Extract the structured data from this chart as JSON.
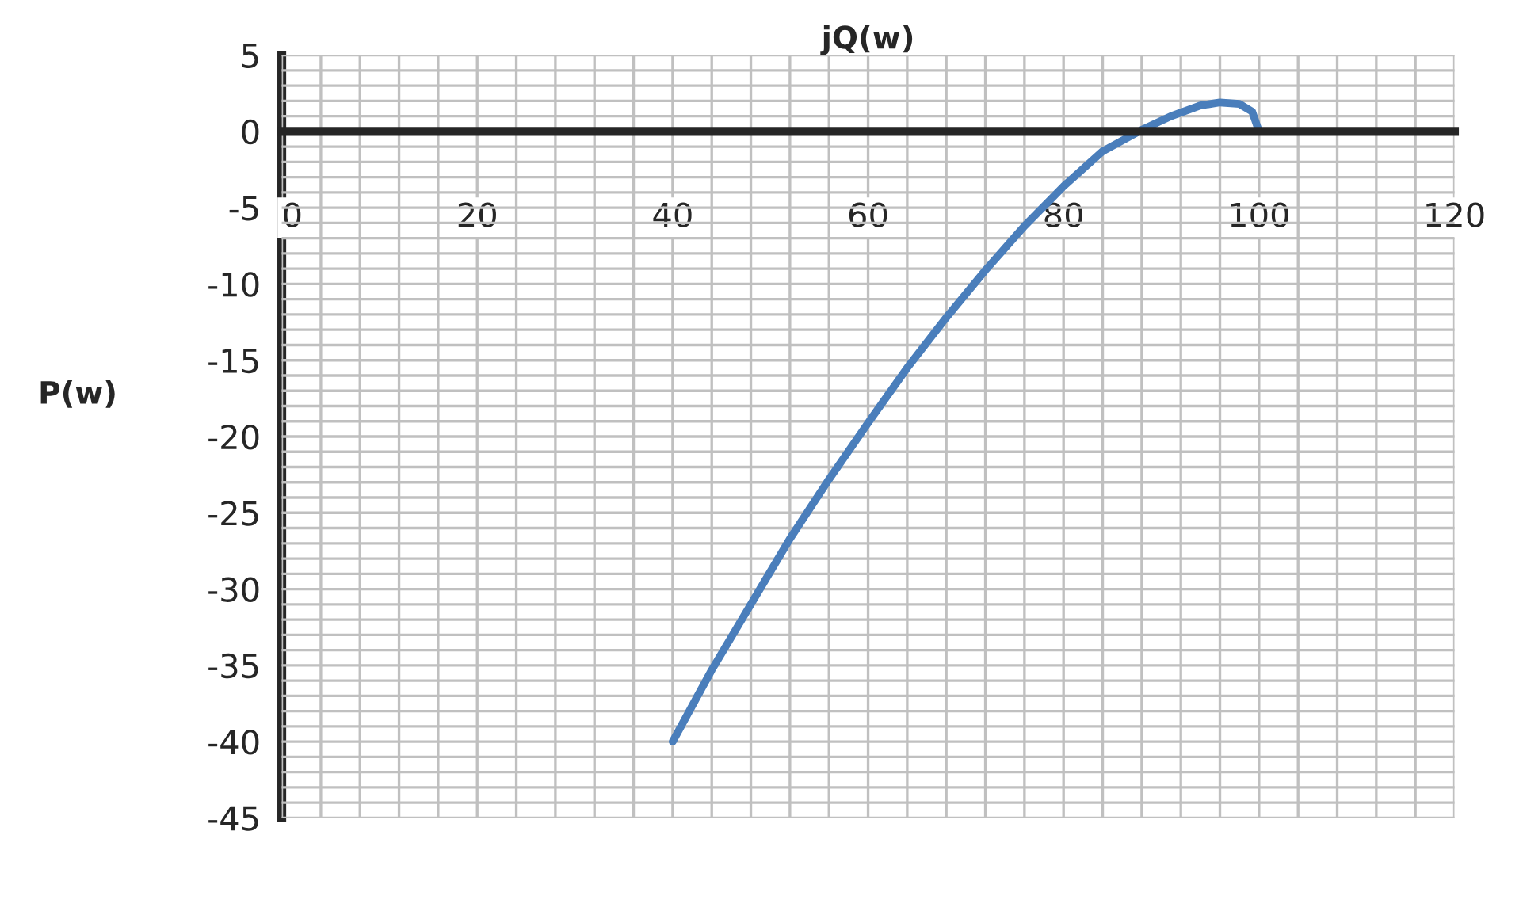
{
  "chart_data": {
    "type": "line",
    "xlabel": "jQ(w)",
    "ylabel": "P(w)",
    "x": [
      40,
      44,
      48,
      52,
      56,
      60,
      64,
      68,
      72,
      76,
      80,
      84,
      88,
      91,
      94,
      96,
      98,
      99.3,
      100
    ],
    "series": [
      {
        "color": "#4a7ebb",
        "values": [
          -40,
          -35.3,
          -31,
          -26.7,
          -22.8,
          -19.1,
          -15.5,
          -12.2,
          -9.1,
          -6.2,
          -3.6,
          -1.3,
          0.1,
          1.0,
          1.7,
          1.9,
          1.8,
          1.3,
          0
        ]
      }
    ],
    "xlim": [
      0,
      120
    ],
    "xticks": [
      0,
      20,
      40,
      60,
      80,
      100,
      120
    ],
    "ylim": [
      -45,
      5
    ],
    "yticks": [
      5,
      0,
      -5,
      -10,
      -15,
      -20,
      -25,
      -30,
      -35,
      -40,
      -45
    ],
    "grid": true,
    "legend": false,
    "marker": "none",
    "line_style": "solid"
  }
}
